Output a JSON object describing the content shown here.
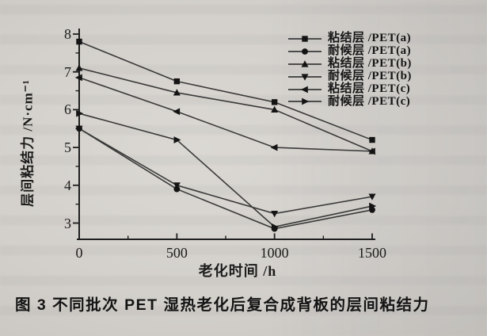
{
  "figure": {
    "caption": "图 3 不同批次 PET 湿热老化后复合成背板的层间粘结力"
  },
  "chart_data": {
    "type": "line",
    "title": "",
    "xlabel": "老化时间 /h",
    "ylabel": "层间粘结力 /N·cm⁻¹",
    "x": [
      0,
      500,
      1000,
      1500
    ],
    "series": [
      {
        "name": "粘结层 /PET(a)",
        "marker": "square",
        "values": [
          7.8,
          6.75,
          6.2,
          5.2
        ]
      },
      {
        "name": "耐候层 /PET(a)",
        "marker": "circle",
        "values": [
          5.5,
          3.9,
          2.85,
          3.35
        ]
      },
      {
        "name": "粘结层 /PET(b)",
        "marker": "triangle-up",
        "values": [
          7.1,
          6.45,
          6.0,
          4.9
        ]
      },
      {
        "name": "耐候层 /PET(b)",
        "marker": "triangle-down",
        "values": [
          5.5,
          4.0,
          3.25,
          3.7
        ]
      },
      {
        "name": "粘结层 /PET(c)",
        "marker": "triangle-left",
        "values": [
          6.85,
          5.95,
          5.0,
          4.9
        ]
      },
      {
        "name": "耐候层 /PET(c)",
        "marker": "triangle-right",
        "values": [
          5.9,
          5.2,
          2.9,
          3.45
        ]
      }
    ],
    "xlim": [
      0,
      1500
    ],
    "ylim": [
      2.6,
      8.1
    ],
    "x_ticks": [
      0,
      500,
      1000,
      1500
    ],
    "x_minor_ticks": [
      250,
      750,
      1250
    ],
    "y_ticks": [
      8,
      7,
      6,
      5,
      4,
      3
    ],
    "y_minor_ticks": [
      7.5,
      6.5,
      5.5,
      4.5,
      3.5
    ],
    "legend_position": "top-right",
    "grid": false,
    "colors": {
      "line": "#3a3a3a",
      "marker": "#141414",
      "axis": "#1f1f1f",
      "text": "#1c1c1c",
      "paper": "#d3d0cb"
    }
  }
}
